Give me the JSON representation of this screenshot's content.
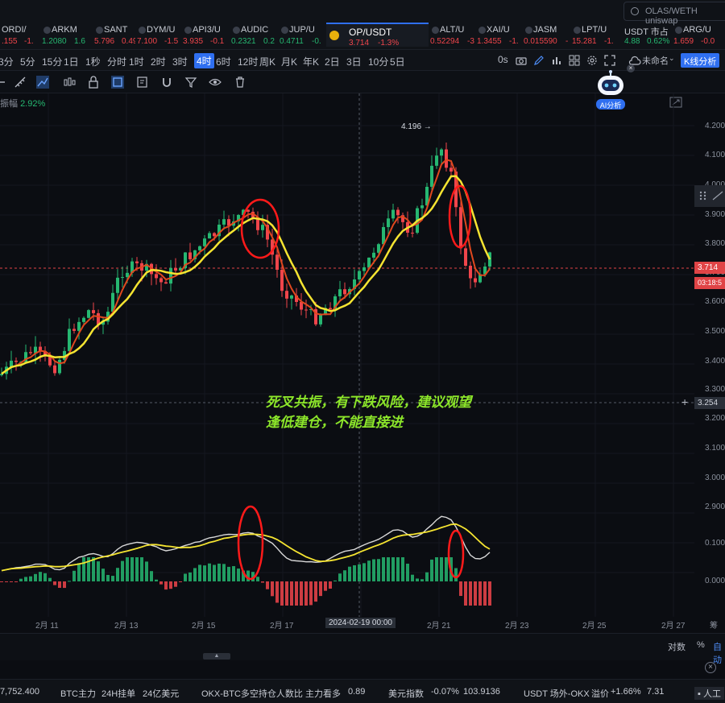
{
  "search": {
    "placeholder": "OLAS/WETH uniswap"
  },
  "tickers": [
    {
      "name": "ORDI/",
      "price": ".155",
      "change": "-1.",
      "dir": "dn"
    },
    {
      "name": "ARKM",
      "price": "1.2080",
      "change": "1.6",
      "dir": "up"
    },
    {
      "name": "SANT",
      "price": "5.796",
      "change": "0.49",
      "dir": "dn"
    },
    {
      "name": "DYM/U",
      "price": "7.100",
      "change": "-1.5",
      "dir": "dn"
    },
    {
      "name": "API3/U",
      "price": "3.935",
      "change": "-0.1",
      "dir": "dn"
    },
    {
      "name": "AUDIC",
      "price": "0.2321",
      "change": "0.2",
      "dir": "up"
    },
    {
      "name": "JUP/U",
      "price": "0.4711",
      "change": "-0.",
      "dir": "up"
    },
    {
      "name": "OP/USDT",
      "price": "3.714",
      "change": "-1.3%",
      "dir": "dn"
    },
    {
      "name": "ALT/U",
      "price": "0.52294",
      "change": "-3",
      "dir": "dn"
    },
    {
      "name": "XAI/U",
      "price": "1.3455",
      "change": "-1.",
      "dir": "dn"
    },
    {
      "name": "JASM",
      "price": "0.015590",
      "change": "-",
      "dir": "dn"
    },
    {
      "name": "LPT/U",
      "price": "15.281",
      "change": "-1.",
      "dir": "dn"
    },
    {
      "name": "USDT 市占",
      "price": "4.88",
      "change": "0.62%",
      "dir": "up"
    },
    {
      "name": "ARG/U",
      "price": "1.659",
      "change": "-0.0",
      "dir": "dn"
    }
  ],
  "intervals": [
    "3分",
    "5分",
    "15分",
    "1日",
    "1秒",
    "分时",
    "1时",
    "2时",
    "3时",
    "4时",
    "6时",
    "12时",
    "周K",
    "月K",
    "年K",
    "2日",
    "3日",
    "10分",
    "5日"
  ],
  "active_interval": "4时",
  "toolbar": {
    "zero_s": "0s",
    "unnamed": "未命名",
    "kline_btn": "K线分析"
  },
  "ai_label": "AI分析",
  "amplitude": {
    "label": "振幅",
    "value": "2.92%"
  },
  "price_axis": [
    "4.200",
    "4.100",
    "4.000",
    "3.900",
    "3.800",
    "3.700",
    "3.600",
    "3.500",
    "3.400",
    "3.300",
    "3.200",
    "3.100",
    "3.000",
    "2.900",
    "0.100",
    "0.000"
  ],
  "current_price": "3.714",
  "countdown": "03:18:5",
  "crosshair_price": "3.254",
  "high_label": "4.196",
  "date_axis": [
    "2月 11",
    "2月 13",
    "2月 15",
    "2月 17",
    "2月 21",
    "2月 23",
    "2月 25",
    "2月 27"
  ],
  "crosshair_date": "2024-02-19 00:00",
  "axis_edge": "筹",
  "annotation": {
    "line1": "死叉共振，有下跌风险，建议观望",
    "line2": "逢低建仓，不能直接进"
  },
  "bottom": {
    "log": "对数",
    "pct": "%",
    "auto": "自动"
  },
  "strip": [
    {
      "text": "7,752.400"
    },
    {
      "text": "BTC主力"
    },
    {
      "text": "24H挂单"
    },
    {
      "text": "24亿美元"
    },
    {
      "text": "OKX-BTC多空持仓人数比"
    },
    {
      "text": "主力看多"
    },
    {
      "text": "0.89"
    },
    {
      "text": "美元指数"
    },
    {
      "text": "-0.07%"
    },
    {
      "text": "103.9136"
    },
    {
      "text": "USDT 场外-OKX"
    },
    {
      "text": "溢价"
    },
    {
      "text": "+1.66%"
    },
    {
      "text": "7.31"
    },
    {
      "text": "人工"
    }
  ],
  "colors": {
    "up": "#26b771",
    "down": "#f0454b",
    "ma_fast": "#e0481e",
    "ma_slow": "#f5e431",
    "macd_line": "#d8d8d8",
    "accent": "#2f6ff0",
    "annotation": "#8ce62a"
  }
}
